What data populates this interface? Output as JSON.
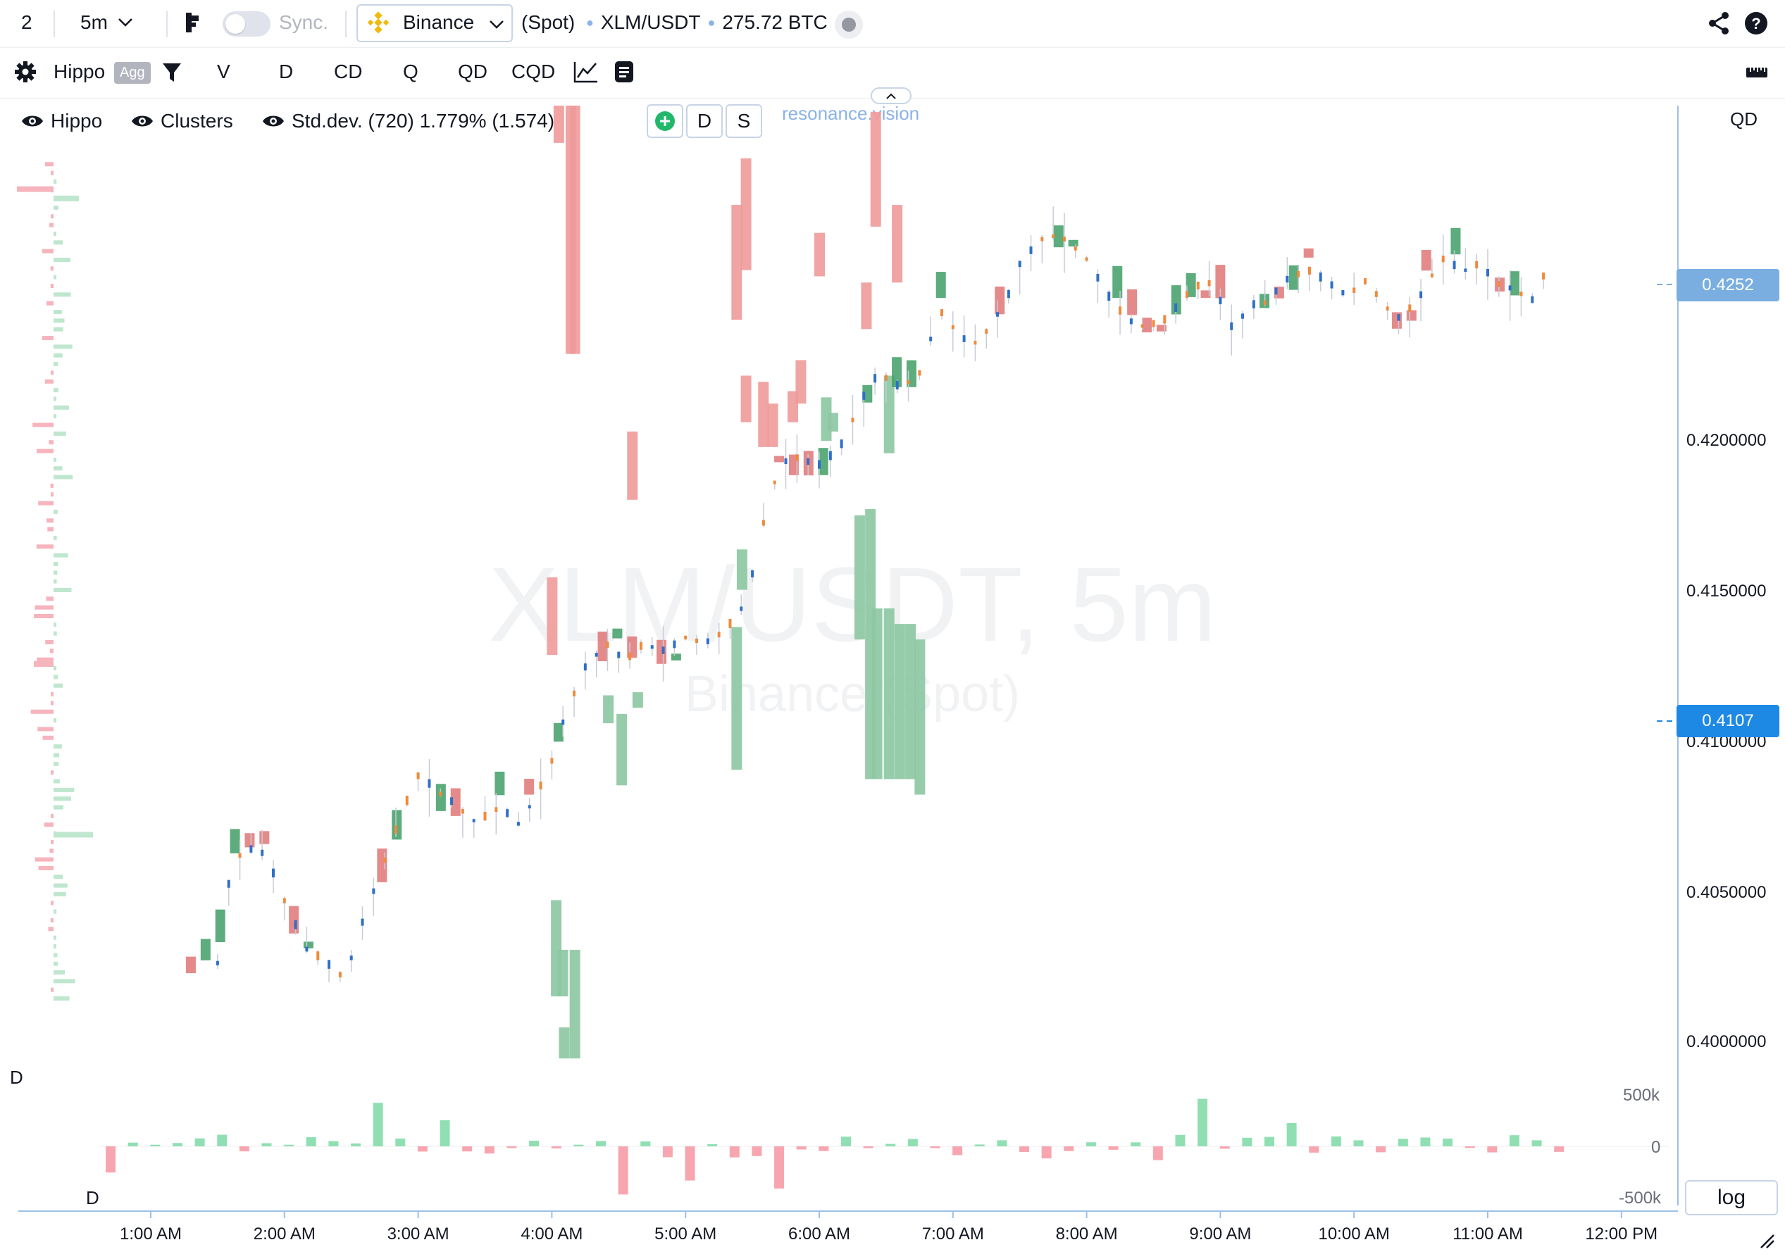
{
  "topbar": {
    "layout_count": "2",
    "timeframe": "5m",
    "sync_label": "Sync.",
    "exchange": "Binance",
    "market_type": "(Spot)",
    "symbol": "XLM/USDT",
    "volume": "275.72 BTC"
  },
  "toolbar": {
    "indicator_name": "Hippo",
    "agg_badge": "Agg",
    "modes": [
      "V",
      "D",
      "CD",
      "Q",
      "QD",
      "CQD"
    ],
    "btn_d": "D",
    "btn_s": "S"
  },
  "legend": {
    "hippo": "Hippo",
    "clusters": "Clusters",
    "stddev": "Std.dev. (720) 1.779% (1.574)"
  },
  "brand": "resonance.vision",
  "watermark": {
    "symbol": "XLM/USDT, 5m",
    "exchange": "Binance (Spot)"
  },
  "price_axis": {
    "header": "QD",
    "ticks": [
      "0.4200000",
      "0.4150000",
      "0.4100000",
      "0.4050000",
      "0.4000000"
    ],
    "tag_upper": "0.4252",
    "tag_current": "0.4107"
  },
  "delta_panel": {
    "label_top": "D",
    "label_bottom": "D",
    "ticks": [
      "500k",
      "0",
      "-500k"
    ],
    "log_label": "log"
  },
  "colors": {
    "up": "#8cc6a2",
    "up_dark": "#3f9d66",
    "down": "#ee9a9a",
    "down_dark": "#e07575",
    "tick_blue": "#2f6fc9",
    "tick_orange": "#f08a3c",
    "accent": "#1e88e5",
    "accent_light": "#7aaee0"
  },
  "chart_data": {
    "type": "candlestick-clusters",
    "title": "XLM/USDT, 5m",
    "x_ticks": [
      "1:00 AM",
      "2:00 AM",
      "3:00 AM",
      "4:00 AM",
      "5:00 AM",
      "6:00 AM",
      "7:00 AM",
      "8:00 AM",
      "9:00 AM",
      "10:00 AM",
      "11:00 AM",
      "12:00 PM"
    ],
    "ylim": [
      0.3993,
      0.4302
    ],
    "price_path": [
      [
        0.5,
        0.4025
      ],
      [
        0.6,
        0.4055
      ],
      [
        0.7,
        0.4062
      ],
      [
        0.85,
        0.406
      ],
      [
        1.0,
        0.4045
      ],
      [
        1.15,
        0.403
      ],
      [
        1.3,
        0.4025
      ],
      [
        1.45,
        0.402
      ],
      [
        1.6,
        0.404
      ],
      [
        1.75,
        0.4058
      ],
      [
        1.9,
        0.4075
      ],
      [
        2.0,
        0.4085
      ],
      [
        2.15,
        0.408
      ],
      [
        2.3,
        0.4075
      ],
      [
        2.45,
        0.407
      ],
      [
        2.6,
        0.4075
      ],
      [
        2.75,
        0.407
      ],
      [
        2.9,
        0.408
      ],
      [
        3.0,
        0.409
      ],
      [
        3.1,
        0.4105
      ],
      [
        3.25,
        0.412
      ],
      [
        3.4,
        0.4128
      ],
      [
        3.55,
        0.4122
      ],
      [
        3.7,
        0.4128
      ],
      [
        3.85,
        0.4125
      ],
      [
        4.0,
        0.413
      ],
      [
        4.15,
        0.4128
      ],
      [
        4.3,
        0.4132
      ],
      [
        4.4,
        0.4137
      ],
      [
        4.5,
        0.415
      ],
      [
        4.6,
        0.417
      ],
      [
        4.7,
        0.4185
      ],
      [
        4.8,
        0.4188
      ],
      [
        5.0,
        0.4185
      ],
      [
        5.15,
        0.419
      ],
      [
        5.3,
        0.4205
      ],
      [
        5.45,
        0.4215
      ],
      [
        5.6,
        0.421
      ],
      [
        5.75,
        0.4215
      ],
      [
        5.9,
        0.4235
      ],
      [
        6.0,
        0.423
      ],
      [
        6.1,
        0.4225
      ],
      [
        6.2,
        0.4225
      ],
      [
        6.3,
        0.4232
      ],
      [
        6.4,
        0.4238
      ],
      [
        6.5,
        0.425
      ],
      [
        6.6,
        0.4255
      ],
      [
        6.7,
        0.426
      ],
      [
        6.85,
        0.4258
      ],
      [
        7.0,
        0.4252
      ],
      [
        7.15,
        0.424
      ],
      [
        7.3,
        0.4232
      ],
      [
        7.45,
        0.423
      ],
      [
        7.6,
        0.4232
      ],
      [
        7.75,
        0.424
      ],
      [
        7.9,
        0.4245
      ],
      [
        8.0,
        0.4238
      ],
      [
        8.1,
        0.4228
      ],
      [
        8.2,
        0.4236
      ],
      [
        8.35,
        0.4238
      ],
      [
        8.5,
        0.4245
      ],
      [
        8.65,
        0.4248
      ],
      [
        8.8,
        0.4244
      ],
      [
        8.95,
        0.424
      ],
      [
        9.1,
        0.4245
      ],
      [
        9.2,
        0.4238
      ],
      [
        9.35,
        0.4232
      ],
      [
        9.5,
        0.424
      ],
      [
        9.65,
        0.4252
      ],
      [
        9.8,
        0.4248
      ],
      [
        9.95,
        0.425
      ],
      [
        10.05,
        0.4244
      ],
      [
        10.2,
        0.4242
      ],
      [
        10.35,
        0.4238
      ],
      [
        10.45,
        0.425
      ]
    ],
    "clusters": [
      {
        "x": 0.03,
        "from": 0.4015,
        "to": 0.4046,
        "side": "up"
      },
      {
        "x": 0.08,
        "from": 0.4015,
        "to": 0.403,
        "side": "up"
      },
      {
        "x": 0.09,
        "from": 0.3995,
        "to": 0.4005,
        "side": "up"
      },
      {
        "x": 0.17,
        "from": 0.3995,
        "to": 0.403,
        "side": "up"
      },
      {
        "x": 0.05,
        "from": 0.429,
        "to": 0.4302,
        "side": "down"
      },
      {
        "x": 0.14,
        "from": 0.4222,
        "to": 0.4302,
        "side": "down"
      },
      {
        "x": 0.17,
        "from": 0.4222,
        "to": 0.4302,
        "side": "down"
      },
      {
        "x": 0.0,
        "from": 0.4125,
        "to": 0.415,
        "side": "down"
      },
      {
        "x": 0.42,
        "from": 0.4103,
        "to": 0.4112,
        "side": "up"
      },
      {
        "x": 0.52,
        "from": 0.4083,
        "to": 0.4106,
        "side": "up"
      },
      {
        "x": 0.6,
        "from": 0.4175,
        "to": 0.4197,
        "side": "down"
      },
      {
        "x": 0.64,
        "from": 0.4108,
        "to": 0.4113,
        "side": "up"
      },
      {
        "x": 1.38,
        "from": 0.4088,
        "to": 0.4134,
        "side": "up"
      },
      {
        "x": 1.42,
        "from": 0.4146,
        "to": 0.4159,
        "side": "up"
      },
      {
        "x": 1.38,
        "from": 0.4233,
        "to": 0.427,
        "side": "down"
      },
      {
        "x": 1.45,
        "from": 0.4249,
        "to": 0.4285,
        "side": "down"
      },
      {
        "x": 1.45,
        "from": 0.42,
        "to": 0.4215,
        "side": "down"
      },
      {
        "x": 1.58,
        "from": 0.4192,
        "to": 0.4213,
        "side": "down"
      },
      {
        "x": 1.65,
        "from": 0.4192,
        "to": 0.4206,
        "side": "down"
      },
      {
        "x": 1.86,
        "from": 0.4206,
        "to": 0.422,
        "side": "down"
      },
      {
        "x": 1.8,
        "from": 0.42,
        "to": 0.421,
        "side": "down"
      },
      {
        "x": 2.0,
        "from": 0.4247,
        "to": 0.4261,
        "side": "down"
      },
      {
        "x": 2.05,
        "from": 0.4194,
        "to": 0.4208,
        "side": "up"
      },
      {
        "x": 2.1,
        "from": 0.4197,
        "to": 0.4203,
        "side": "up"
      },
      {
        "x": 2.3,
        "from": 0.413,
        "to": 0.417,
        "side": "up"
      },
      {
        "x": 2.35,
        "from": 0.423,
        "to": 0.4245,
        "side": "down"
      },
      {
        "x": 2.38,
        "from": 0.4085,
        "to": 0.4172,
        "side": "up"
      },
      {
        "x": 2.43,
        "from": 0.4085,
        "to": 0.414,
        "side": "up"
      },
      {
        "x": 2.52,
        "from": 0.4085,
        "to": 0.414,
        "side": "up"
      },
      {
        "x": 2.6,
        "from": 0.4085,
        "to": 0.4135,
        "side": "up"
      },
      {
        "x": 2.68,
        "from": 0.4085,
        "to": 0.4135,
        "side": "up"
      },
      {
        "x": 2.75,
        "from": 0.408,
        "to": 0.413,
        "side": "up"
      },
      {
        "x": 2.52,
        "from": 0.419,
        "to": 0.4215,
        "side": "up"
      },
      {
        "x": 2.42,
        "from": 0.4263,
        "to": 0.43,
        "side": "down"
      },
      {
        "x": 2.58,
        "from": 0.4245,
        "to": 0.427,
        "side": "down"
      }
    ]
  }
}
